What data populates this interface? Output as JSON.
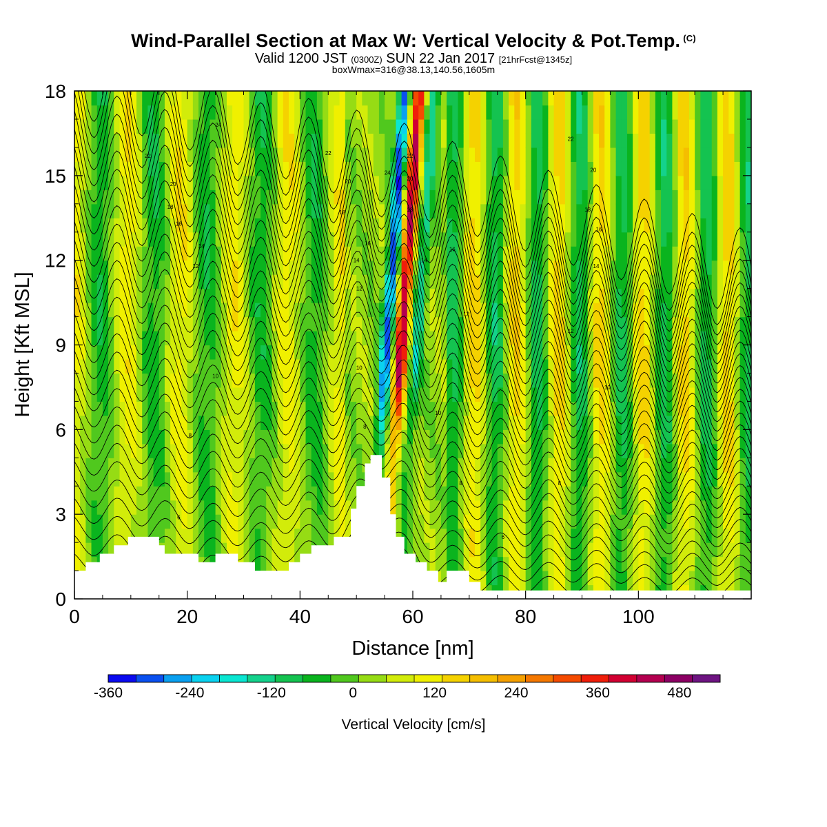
{
  "header": {
    "title": "Wind-Parallel Section at Max W: Vertical Velocity & Pot.Temp.",
    "copyright": "(C)",
    "valid_prefix": "Valid 1200 JST",
    "valid_utc": "(0300Z)",
    "valid_date": "SUN 22 Jan 2017",
    "forecast": "[21hrFcst@1345z]",
    "box_info": "boxWmax=316@38.13,140.56,1605m"
  },
  "chart_data": {
    "type": "heatmap",
    "title": "Wind-Parallel Section at Max W: Vertical Velocity & Pot.Temp.",
    "xlabel": "Distance [nm]",
    "ylabel": "Height [Kft MSL]",
    "xlim": [
      0,
      120
    ],
    "ylim": [
      0,
      18
    ],
    "x_ticks": [
      0,
      20,
      40,
      60,
      80,
      100
    ],
    "y_ticks": [
      0,
      3,
      6,
      9,
      12,
      15,
      18
    ],
    "colorbar": {
      "label": "Vertical Velocity [cm/s]",
      "min": -360,
      "max": 540,
      "step": 40,
      "tick_values": [
        -360,
        -240,
        -120,
        0,
        120,
        240,
        360,
        480
      ],
      "colors": [
        "#0a0af0",
        "#0a50f0",
        "#0aa0f0",
        "#0ad2f0",
        "#0ae6d2",
        "#14d28c",
        "#14c350",
        "#0ab41e",
        "#50c81e",
        "#96dc14",
        "#d2ec0a",
        "#f0f000",
        "#f5d200",
        "#f5be00",
        "#f5a000",
        "#f57800",
        "#f54b00",
        "#f01e0a",
        "#d20032",
        "#b40050",
        "#8c0064",
        "#6e1482"
      ]
    },
    "isentrope_labels": [
      {
        "x": 25.5,
        "y": 16.8,
        "text": "24"
      },
      {
        "x": 13,
        "y": 15.7,
        "text": "22"
      },
      {
        "x": 17.5,
        "y": 14.7,
        "text": "20"
      },
      {
        "x": 17,
        "y": 13.9,
        "text": "18"
      },
      {
        "x": 18.5,
        "y": 13.3,
        "text": "16"
      },
      {
        "x": 22.5,
        "y": 12.5,
        "text": "14"
      },
      {
        "x": 21.5,
        "y": 11.8,
        "text": "12"
      },
      {
        "x": 45,
        "y": 15.8,
        "text": "22"
      },
      {
        "x": 48.5,
        "y": 14.8,
        "text": "20"
      },
      {
        "x": 47.5,
        "y": 13.7,
        "text": "18"
      },
      {
        "x": 52,
        "y": 12.6,
        "text": "16"
      },
      {
        "x": 50,
        "y": 12.0,
        "text": "14"
      },
      {
        "x": 50.5,
        "y": 11.0,
        "text": "12"
      },
      {
        "x": 50.5,
        "y": 8.2,
        "text": "10"
      },
      {
        "x": 55.5,
        "y": 15.1,
        "text": "24"
      },
      {
        "x": 59.5,
        "y": 15.7,
        "text": "22"
      },
      {
        "x": 59.5,
        "y": 14.9,
        "text": "20"
      },
      {
        "x": 59.5,
        "y": 13.8,
        "text": "18"
      },
      {
        "x": 62,
        "y": 12.0,
        "text": "14"
      },
      {
        "x": 67,
        "y": 12.4,
        "text": "16"
      },
      {
        "x": 69.5,
        "y": 10.1,
        "text": "12"
      },
      {
        "x": 64.5,
        "y": 6.6,
        "text": "10"
      },
      {
        "x": 88,
        "y": 16.3,
        "text": "22"
      },
      {
        "x": 92,
        "y": 15.2,
        "text": "20"
      },
      {
        "x": 91,
        "y": 13.8,
        "text": "18"
      },
      {
        "x": 93,
        "y": 13.1,
        "text": "16"
      },
      {
        "x": 92.5,
        "y": 11.8,
        "text": "14"
      },
      {
        "x": 88,
        "y": 9.5,
        "text": "12"
      },
      {
        "x": 94.5,
        "y": 7.5,
        "text": "10"
      },
      {
        "x": 25,
        "y": 7.9,
        "text": "10"
      },
      {
        "x": 20.5,
        "y": 5.8,
        "text": "8"
      },
      {
        "x": 18.5,
        "y": 2.9,
        "text": "6"
      },
      {
        "x": 51.5,
        "y": 6.1,
        "text": "8"
      },
      {
        "x": 68.5,
        "y": 4.1,
        "text": "8"
      },
      {
        "x": 86,
        "y": 4.1,
        "text": "8"
      },
      {
        "x": 76,
        "y": 2.2,
        "text": "6"
      }
    ],
    "terrain_kft": [
      [
        0,
        1.0
      ],
      [
        2,
        1.0
      ],
      [
        2,
        1.3
      ],
      [
        4.5,
        1.3
      ],
      [
        4.5,
        1.6
      ],
      [
        7,
        1.6
      ],
      [
        7,
        1.9
      ],
      [
        9.5,
        1.9
      ],
      [
        9.5,
        2.2
      ],
      [
        15,
        2.2
      ],
      [
        15,
        1.9
      ],
      [
        16,
        1.9
      ],
      [
        16,
        1.6
      ],
      [
        22,
        1.6
      ],
      [
        22,
        1.3
      ],
      [
        25,
        1.3
      ],
      [
        25,
        1.6
      ],
      [
        29,
        1.6
      ],
      [
        29,
        1.3
      ],
      [
        32,
        1.3
      ],
      [
        32,
        1.0
      ],
      [
        38,
        1.0
      ],
      [
        38,
        1.3
      ],
      [
        40,
        1.3
      ],
      [
        40,
        1.6
      ],
      [
        42,
        1.6
      ],
      [
        42,
        1.9
      ],
      [
        46,
        1.9
      ],
      [
        46,
        2.2
      ],
      [
        49,
        2.2
      ],
      [
        49,
        3.2
      ],
      [
        50,
        3.2
      ],
      [
        50,
        4.0
      ],
      [
        51.5,
        4.0
      ],
      [
        51.5,
        4.8
      ],
      [
        52.5,
        4.8
      ],
      [
        52.5,
        5.1
      ],
      [
        54.5,
        5.1
      ],
      [
        54.5,
        4.3
      ],
      [
        56,
        4.3
      ],
      [
        56,
        3.0
      ],
      [
        57,
        3.0
      ],
      [
        57,
        2.2
      ],
      [
        58.5,
        2.2
      ],
      [
        58.5,
        1.6
      ],
      [
        60.5,
        1.6
      ],
      [
        60.5,
        1.3
      ],
      [
        62.5,
        1.3
      ],
      [
        62.5,
        1.0
      ],
      [
        64.5,
        1.0
      ],
      [
        64.5,
        0.6
      ],
      [
        66,
        0.6
      ],
      [
        66,
        1.0
      ],
      [
        70,
        1.0
      ],
      [
        70,
        0.6
      ],
      [
        72,
        0.6
      ],
      [
        72,
        0.3
      ],
      [
        120,
        0.3
      ]
    ]
  },
  "colors": {
    "background": "#ffffff",
    "axis": "#000000",
    "contour": "#000000",
    "terrain": "#ffffff"
  }
}
